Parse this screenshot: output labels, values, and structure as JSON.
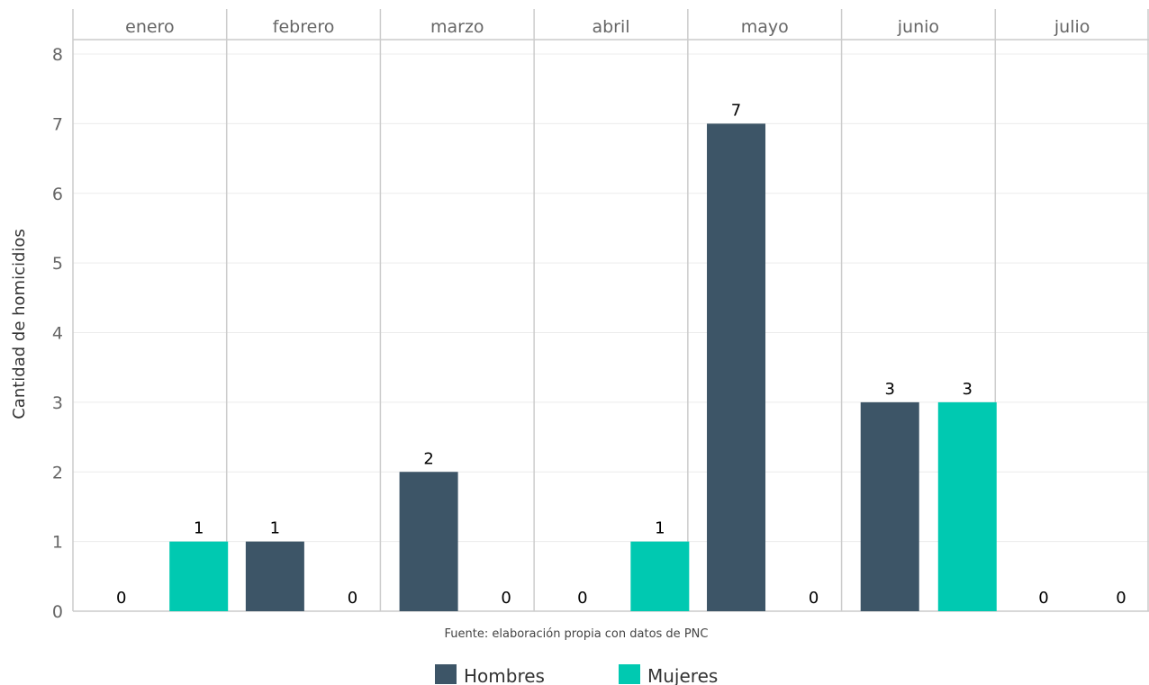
{
  "chart_data": {
    "type": "bar",
    "facets": [
      "enero",
      "febrero",
      "marzo",
      "abril",
      "mayo",
      "junio",
      "julio"
    ],
    "series": [
      {
        "name": "Hombres",
        "color": "#3d5567",
        "values": [
          0,
          1,
          2,
          0,
          7,
          3,
          0
        ]
      },
      {
        "name": "Mujeres",
        "color": "#00c9b1",
        "values": [
          1,
          0,
          0,
          1,
          0,
          3,
          0
        ]
      }
    ],
    "ylabel": "Cantidad de homicidios",
    "ylim": [
      0,
      8
    ],
    "yticks": [
      0,
      1,
      2,
      3,
      4,
      5,
      6,
      7,
      8
    ],
    "grid": true,
    "legend_position": "bottom",
    "caption": "Fuente: elaboración propia con datos de PNC"
  }
}
